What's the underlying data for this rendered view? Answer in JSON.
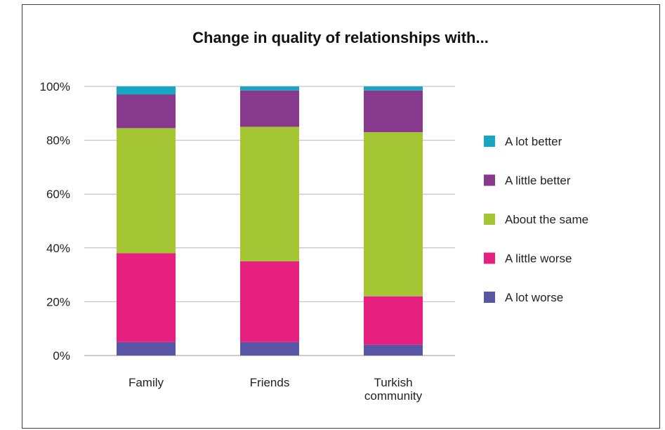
{
  "chart_data": {
    "type": "bar",
    "stacked": true,
    "title": "Change in quality of relationships with...",
    "xlabel": "",
    "ylabel": "",
    "ylim": [
      0,
      100
    ],
    "y_ticks": [
      "0%",
      "20%",
      "40%",
      "60%",
      "80%",
      "100%"
    ],
    "grid": true,
    "legend_position": "right",
    "categories": [
      [
        "Family"
      ],
      [
        "Friends"
      ],
      [
        "Turkish",
        "community"
      ]
    ],
    "series": [
      {
        "name": "A lot worse",
        "color": "#5a55a5",
        "values": [
          5,
          5,
          4
        ]
      },
      {
        "name": "A little worse",
        "color": "#e7207f",
        "values": [
          33,
          30,
          18
        ]
      },
      {
        "name": "About the same",
        "color": "#a4c534",
        "values": [
          46.5,
          50,
          61
        ]
      },
      {
        "name": "A little better",
        "color": "#873a8c",
        "values": [
          12.5,
          13.5,
          15.5
        ]
      },
      {
        "name": "A lot better",
        "color": "#17a6c3",
        "values": [
          3,
          1.5,
          1.5
        ]
      }
    ]
  }
}
